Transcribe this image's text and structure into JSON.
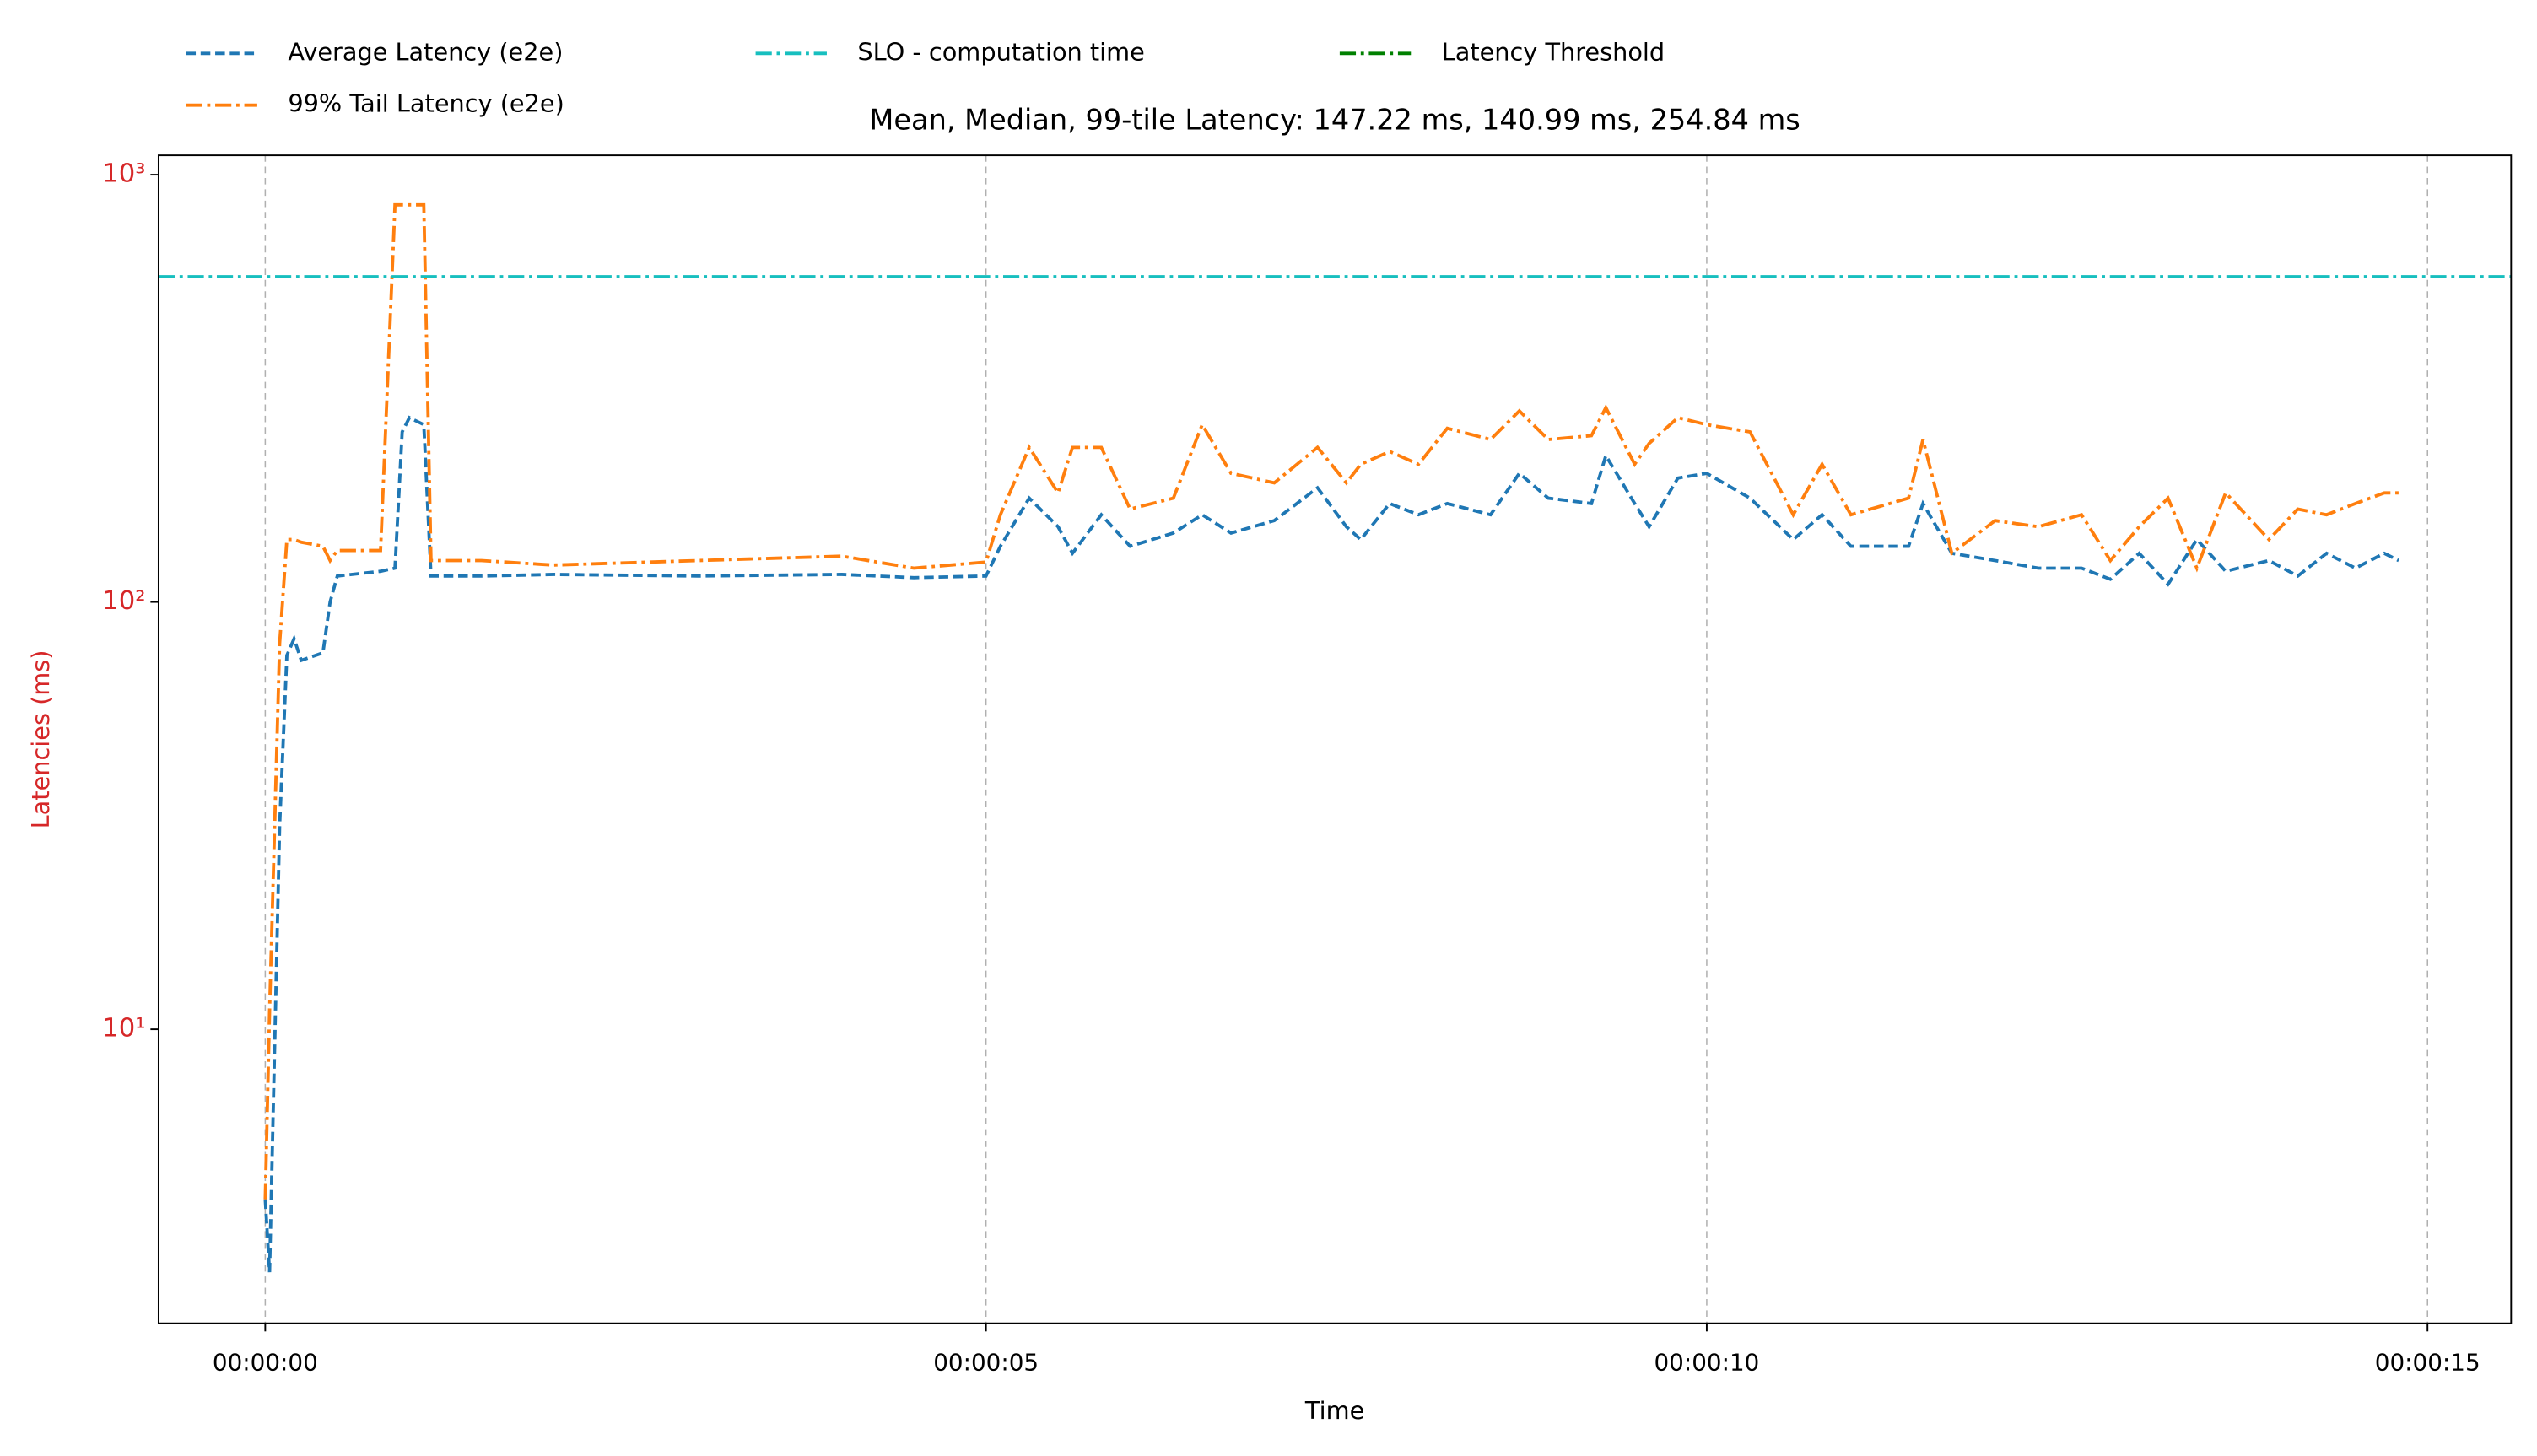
{
  "chart_data": {
    "type": "line",
    "title": "Mean, Median, 99-tile Latency: 147.22 ms, 140.99 ms, 254.84 ms",
    "x_label": "Time",
    "y_label": "Latencies (ms)",
    "yscale": "log",
    "grid_axis": "x",
    "axis_color": "#d62728",
    "xlim": [
      -0.74,
      15.58
    ],
    "ylim": [
      2.05,
      1110
    ],
    "xticks": [
      {
        "value": 0,
        "label": "00:00:00"
      },
      {
        "value": 5,
        "label": "00:00:05"
      },
      {
        "value": 10,
        "label": "00:00:10"
      },
      {
        "value": 15,
        "label": "00:00:15"
      }
    ],
    "yticks": [
      {
        "value": 10,
        "label": "10¹"
      },
      {
        "value": 100,
        "label": "10²"
      },
      {
        "value": 1000,
        "label": "10³"
      }
    ],
    "x": [
      0,
      0.03,
      0.1,
      0.15,
      0.2,
      0.25,
      0.4,
      0.45,
      0.5,
      0.8,
      0.9,
      0.95,
      1.0,
      1.1,
      1.15,
      1.5,
      2,
      3,
      4,
      4.5,
      5,
      5.1,
      5.3,
      5.5,
      5.6,
      5.8,
      6,
      6.3,
      6.5,
      6.7,
      7,
      7.3,
      7.5,
      7.6,
      7.8,
      8,
      8.2,
      8.5,
      8.7,
      8.9,
      9.2,
      9.3,
      9.5,
      9.6,
      9.8,
      10,
      10.3,
      10.6,
      10.8,
      11,
      11.4,
      11.5,
      11.7,
      12,
      12.3,
      12.6,
      12.8,
      13,
      13.2,
      13.4,
      13.6,
      13.9,
      14.1,
      14.3,
      14.5,
      14.7,
      14.8
    ],
    "series": [
      {
        "name": "Average Latency (e2e)",
        "color": "#1f77b4",
        "style": "dashed",
        "values": [
          4,
          2.7,
          30,
          75,
          82,
          73,
          76,
          100,
          115,
          118,
          120,
          250,
          270,
          260,
          115,
          115,
          116,
          115,
          116,
          114,
          115,
          135,
          175,
          150,
          130,
          160,
          135,
          145,
          160,
          145,
          155,
          185,
          150,
          140,
          170,
          160,
          170,
          160,
          200,
          175,
          170,
          220,
          170,
          150,
          195,
          200,
          175,
          140,
          160,
          135,
          135,
          170,
          130,
          125,
          120,
          120,
          113,
          130,
          110,
          140,
          118,
          125,
          115,
          130,
          120,
          130,
          125
        ]
      },
      {
        "name": "99% Tail Latency (e2e)",
        "color": "#ff7f0e",
        "style": "dashdot",
        "values": [
          4,
          11,
          80,
          140,
          140,
          138,
          135,
          125,
          132,
          132,
          850,
          850,
          850,
          850,
          125,
          125,
          122,
          125,
          128,
          120,
          124,
          160,
          230,
          180,
          230,
          230,
          165,
          175,
          260,
          200,
          190,
          230,
          190,
          210,
          225,
          210,
          255,
          240,
          280,
          240,
          245,
          285,
          210,
          235,
          270,
          260,
          250,
          160,
          210,
          160,
          175,
          240,
          130,
          155,
          150,
          160,
          125,
          150,
          175,
          120,
          180,
          140,
          165,
          160,
          170,
          180,
          180
        ]
      },
      {
        "name": "SLO - computation time",
        "color": "#17bfbf",
        "style": "dashdot",
        "value": 577
      },
      {
        "name": "Latency Threshold",
        "color": "#008000",
        "style": "dashdot"
      }
    ]
  }
}
